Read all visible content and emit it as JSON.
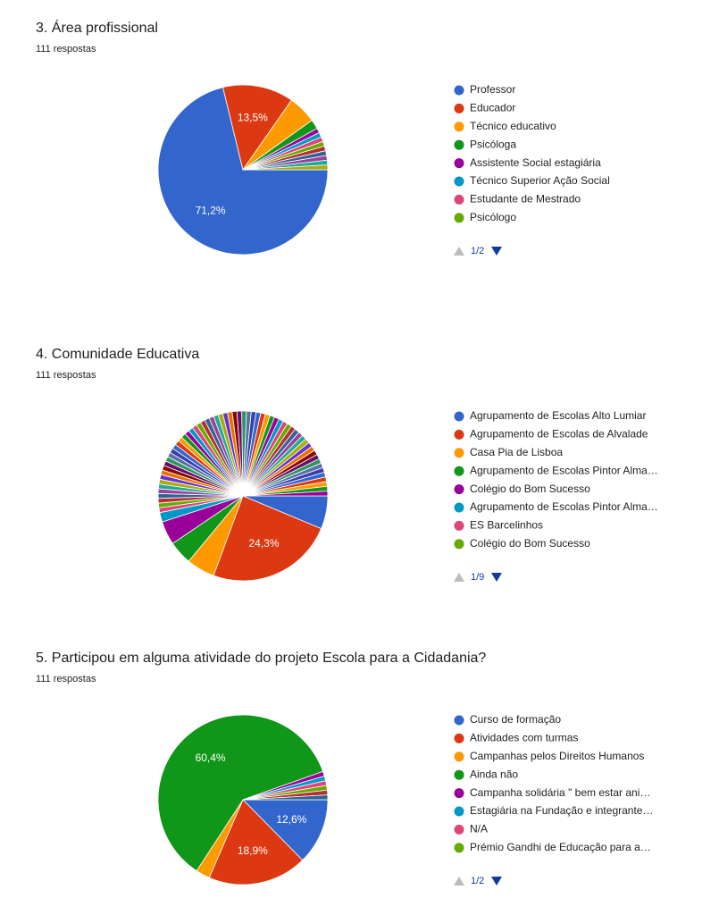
{
  "chart_data": [
    {
      "type": "pie",
      "title": "3. Área profissional",
      "subtitle": "111 respostas",
      "categories": [
        "Professor",
        "Educador",
        "Técnico educativo",
        "Psicóloga",
        "Assistente Social estagiária",
        "Técnico Superior Ação Social",
        "Estudante de Mestrado",
        "Psicólogo",
        null,
        null,
        null,
        null,
        null
      ],
      "values": [
        71.2,
        13.5,
        5.4,
        1.8,
        0.9,
        0.9,
        0.9,
        0.9,
        0.9,
        0.9,
        0.9,
        0.9,
        0.9
      ],
      "value_labels": [
        "71,2%",
        "13,5%",
        null,
        null,
        null,
        null,
        null,
        null,
        null,
        null,
        null,
        null,
        null
      ],
      "legend_page": "1/2",
      "colors": [
        "#3366cc",
        "#dc3912",
        "#ff9900",
        "#109618",
        "#990099",
        "#0099c6",
        "#dd4477",
        "#66aa00",
        "#b82e2e",
        "#316395",
        "#994499",
        "#22aa99",
        "#aaaa11",
        "#6633cc",
        "#e67300",
        "#8b0707",
        "#651067",
        "#329262",
        "#5574a6",
        "#3b3eac"
      ]
    },
    {
      "type": "pie",
      "title": "4. Comunidade Educativa",
      "subtitle": "111 respostas",
      "categories": [
        "Agrupamento de Escolas Alto Lumiar",
        "Agrupamento de Escolas de Alvalade",
        "Casa Pia de Lisboa",
        "Agrupamento de Escolas Pintor Alma…",
        "Colégio do Bom Sucesso",
        "Agrupamento de Escolas Pintor Alma…",
        "ES Barcelinhos",
        "Colégio do Bom Sucesso",
        null,
        null,
        null,
        null,
        null,
        null,
        null,
        null,
        null,
        null,
        null,
        null,
        null,
        null,
        null,
        null,
        null,
        null,
        null,
        null,
        null,
        null,
        null,
        null,
        null,
        null,
        null,
        null,
        null,
        null,
        null,
        null,
        null,
        null,
        null,
        null,
        null,
        null,
        null,
        null,
        null,
        null,
        null,
        null,
        null,
        null,
        null,
        null,
        null,
        null,
        null,
        null,
        null,
        null,
        null,
        null,
        null
      ],
      "values": [
        6.3,
        24.3,
        5.4,
        4.5,
        4.5,
        1.8,
        0.9,
        0.9,
        0.9,
        0.9,
        0.9,
        0.9,
        0.9,
        0.9,
        0.9,
        0.9,
        0.9,
        0.9,
        0.9,
        0.9,
        0.9,
        0.9,
        0.9,
        0.9,
        0.9,
        0.9,
        0.9,
        0.9,
        0.9,
        0.9,
        0.9,
        0.9,
        0.9,
        0.9,
        0.9,
        0.9,
        0.9,
        0.9,
        0.9,
        0.9,
        0.9,
        0.9,
        0.9,
        0.9,
        0.9,
        0.9,
        0.9,
        0.9,
        0.9,
        0.9,
        0.9,
        0.9,
        0.9,
        0.9,
        0.9,
        0.9,
        0.9,
        0.9,
        0.9,
        0.9,
        0.9,
        0.9,
        0.9,
        0.9,
        0.9
      ],
      "value_labels": [
        null,
        "24,3%",
        null,
        null,
        null,
        null,
        null,
        null,
        null,
        null,
        null,
        null,
        null,
        null,
        null,
        null,
        null,
        null,
        null,
        null,
        null,
        null,
        null,
        null,
        null,
        null,
        null,
        null,
        null,
        null,
        null,
        null,
        null,
        null,
        null,
        null,
        null,
        null,
        null,
        null,
        null,
        null,
        null,
        null,
        null,
        null,
        null,
        null,
        null,
        null,
        null,
        null,
        null,
        null,
        null,
        null,
        null,
        null,
        null,
        null,
        null,
        null,
        null,
        null,
        null
      ],
      "legend_page": "1/9",
      "colors": [
        "#3366cc",
        "#dc3912",
        "#ff9900",
        "#109618",
        "#990099",
        "#0099c6",
        "#dd4477",
        "#66aa00",
        "#b82e2e",
        "#316395",
        "#994499",
        "#22aa99",
        "#aaaa11",
        "#6633cc",
        "#e67300",
        "#8b0707",
        "#651067",
        "#329262",
        "#5574a6",
        "#3b3eac"
      ]
    },
    {
      "type": "pie",
      "title": "5. Participou em alguma atividade do projeto Escola para a Cidadania?",
      "subtitle": "111 respostas",
      "categories": [
        "Curso de formação",
        "Atividades com turmas",
        "Campanhas pelos Direitos Humanos",
        "Ainda não",
        "Campanha solidária \" bem estar ani…",
        "Estagiária na Fundação e integrante…",
        "N/A",
        "Prémio Gandhi de Educação para a…",
        null,
        null
      ],
      "values": [
        12.6,
        18.9,
        2.7,
        60.4,
        0.9,
        0.9,
        0.9,
        0.9,
        0.9,
        0.9
      ],
      "value_labels": [
        "12,6%",
        "18,9%",
        null,
        "60,4%",
        null,
        null,
        null,
        null,
        null,
        null
      ],
      "legend_page": "1/2",
      "colors": [
        "#3366cc",
        "#dc3912",
        "#ff9900",
        "#109618",
        "#990099",
        "#0099c6",
        "#dd4477",
        "#66aa00",
        "#b82e2e",
        "#316395",
        "#994499",
        "#22aa99",
        "#aaaa11",
        "#6633cc",
        "#e67300",
        "#8b0707",
        "#651067",
        "#329262",
        "#5574a6",
        "#3b3eac"
      ]
    }
  ]
}
